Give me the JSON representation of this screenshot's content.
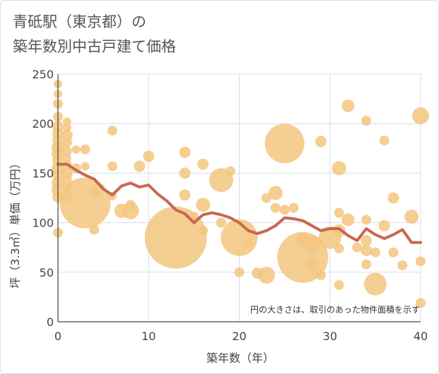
{
  "title_line1": "青砥駅（東京都）の",
  "title_line2": "築年数別中古戸建て価格",
  "colors": {
    "bubble": "#f3c57f",
    "line": "#c8674f",
    "grid": "#d7dde6",
    "axis": "#444444"
  },
  "chart_data": {
    "type": "scatter",
    "title": "青砥駅（東京都）の築年数別中古戸建て価格",
    "xlabel": "築年数（年）",
    "ylabel": "坪（3.3㎡）単価（万円）",
    "xlim": [
      0,
      40
    ],
    "ylim": [
      0,
      250
    ],
    "x_ticks": [
      "0",
      "10",
      "20",
      "30",
      "40"
    ],
    "y_ticks": [
      "0",
      "50",
      "100",
      "150",
      "200",
      "250"
    ],
    "grid": true,
    "annotation": "円の大きさは、取引のあった物件面積を示す",
    "bubbles": [
      {
        "x": 0,
        "y": 240,
        "r": 6
      },
      {
        "x": 0,
        "y": 230,
        "r": 6
      },
      {
        "x": 0,
        "y": 220,
        "r": 7
      },
      {
        "x": 0,
        "y": 207,
        "r": 7
      },
      {
        "x": 0,
        "y": 197,
        "r": 8
      },
      {
        "x": 0,
        "y": 190,
        "r": 8
      },
      {
        "x": 0,
        "y": 183,
        "r": 8
      },
      {
        "x": 0,
        "y": 176,
        "r": 9
      },
      {
        "x": 0,
        "y": 170,
        "r": 9
      },
      {
        "x": 0,
        "y": 163,
        "r": 8
      },
      {
        "x": 0,
        "y": 155,
        "r": 9
      },
      {
        "x": 0,
        "y": 148,
        "r": 8
      },
      {
        "x": 0,
        "y": 140,
        "r": 9
      },
      {
        "x": 0,
        "y": 133,
        "r": 9
      },
      {
        "x": 0,
        "y": 126,
        "r": 8
      },
      {
        "x": 0,
        "y": 90,
        "r": 7
      },
      {
        "x": 1,
        "y": 202,
        "r": 6
      },
      {
        "x": 1,
        "y": 196,
        "r": 6
      },
      {
        "x": 1,
        "y": 188,
        "r": 8
      },
      {
        "x": 1,
        "y": 181,
        "r": 7
      },
      {
        "x": 1,
        "y": 172,
        "r": 7
      },
      {
        "x": 1,
        "y": 165,
        "r": 6
      },
      {
        "x": 1,
        "y": 158,
        "r": 7
      },
      {
        "x": 1,
        "y": 150,
        "r": 8
      },
      {
        "x": 1,
        "y": 143,
        "r": 7
      },
      {
        "x": 1,
        "y": 136,
        "r": 7
      },
      {
        "x": 1,
        "y": 126,
        "r": 7
      },
      {
        "x": 2,
        "y": 174,
        "r": 6
      },
      {
        "x": 2,
        "y": 155,
        "r": 7
      },
      {
        "x": 3,
        "y": 120,
        "r": 36
      },
      {
        "x": 3,
        "y": 174,
        "r": 7
      },
      {
        "x": 3,
        "y": 157,
        "r": 6
      },
      {
        "x": 4,
        "y": 130,
        "r": 8
      },
      {
        "x": 4,
        "y": 93,
        "r": 7
      },
      {
        "x": 6,
        "y": 193,
        "r": 7
      },
      {
        "x": 6,
        "y": 157,
        "r": 7
      },
      {
        "x": 6,
        "y": 127,
        "r": 6
      },
      {
        "x": 7,
        "y": 112,
        "r": 10
      },
      {
        "x": 8,
        "y": 112,
        "r": 12
      },
      {
        "x": 8,
        "y": 118,
        "r": 7
      },
      {
        "x": 9,
        "y": 157,
        "r": 8
      },
      {
        "x": 10,
        "y": 167,
        "r": 8
      },
      {
        "x": 13,
        "y": 85,
        "r": 44
      },
      {
        "x": 14,
        "y": 171,
        "r": 8
      },
      {
        "x": 14,
        "y": 150,
        "r": 8
      },
      {
        "x": 14,
        "y": 128,
        "r": 8
      },
      {
        "x": 15,
        "y": 106,
        "r": 7
      },
      {
        "x": 16,
        "y": 159,
        "r": 8
      },
      {
        "x": 16,
        "y": 118,
        "r": 10
      },
      {
        "x": 16,
        "y": 92,
        "r": 7
      },
      {
        "x": 18,
        "y": 143,
        "r": 17
      },
      {
        "x": 19,
        "y": 152,
        "r": 7
      },
      {
        "x": 18,
        "y": 100,
        "r": 7
      },
      {
        "x": 20,
        "y": 85,
        "r": 26
      },
      {
        "x": 20,
        "y": 50,
        "r": 7
      },
      {
        "x": 21,
        "y": 80,
        "r": 7
      },
      {
        "x": 22,
        "y": 49,
        "r": 8
      },
      {
        "x": 23,
        "y": 47,
        "r": 12
      },
      {
        "x": 23,
        "y": 125,
        "r": 7
      },
      {
        "x": 24,
        "y": 130,
        "r": 10
      },
      {
        "x": 24,
        "y": 115,
        "r": 7
      },
      {
        "x": 25,
        "y": 180,
        "r": 28
      },
      {
        "x": 25,
        "y": 113,
        "r": 7
      },
      {
        "x": 26,
        "y": 115,
        "r": 7
      },
      {
        "x": 27,
        "y": 65,
        "r": 36
      },
      {
        "x": 27,
        "y": 82,
        "r": 10
      },
      {
        "x": 28,
        "y": 79,
        "r": 12
      },
      {
        "x": 28,
        "y": 58,
        "r": 10
      },
      {
        "x": 29,
        "y": 182,
        "r": 8
      },
      {
        "x": 29,
        "y": 47,
        "r": 7
      },
      {
        "x": 30,
        "y": 85,
        "r": 16
      },
      {
        "x": 31,
        "y": 155,
        "r": 10
      },
      {
        "x": 31,
        "y": 110,
        "r": 7
      },
      {
        "x": 31,
        "y": 92,
        "r": 9
      },
      {
        "x": 31,
        "y": 74,
        "r": 7
      },
      {
        "x": 31,
        "y": 37,
        "r": 7
      },
      {
        "x": 32,
        "y": 218,
        "r": 9
      },
      {
        "x": 32,
        "y": 103,
        "r": 9
      },
      {
        "x": 33,
        "y": 75,
        "r": 7
      },
      {
        "x": 34,
        "y": 203,
        "r": 7
      },
      {
        "x": 34,
        "y": 103,
        "r": 7
      },
      {
        "x": 34,
        "y": 82,
        "r": 8
      },
      {
        "x": 34,
        "y": 72,
        "r": 8
      },
      {
        "x": 34,
        "y": 58,
        "r": 7
      },
      {
        "x": 35,
        "y": 38,
        "r": 16
      },
      {
        "x": 35,
        "y": 70,
        "r": 7
      },
      {
        "x": 36,
        "y": 183,
        "r": 7
      },
      {
        "x": 36,
        "y": 97,
        "r": 8
      },
      {
        "x": 37,
        "y": 125,
        "r": 8
      },
      {
        "x": 37,
        "y": 70,
        "r": 7
      },
      {
        "x": 38,
        "y": 57,
        "r": 7
      },
      {
        "x": 39,
        "y": 106,
        "r": 10
      },
      {
        "x": 40,
        "y": 208,
        "r": 12
      },
      {
        "x": 40,
        "y": 61,
        "r": 7
      },
      {
        "x": 40,
        "y": 19,
        "r": 7
      }
    ],
    "series": [
      {
        "type": "line",
        "x": [
          0,
          1,
          2,
          3,
          4,
          5,
          6,
          7,
          8,
          9,
          10,
          11,
          12,
          13,
          14,
          15,
          16,
          17,
          18,
          19,
          20,
          21,
          22,
          23,
          24,
          25,
          26,
          27,
          28,
          29,
          30,
          31,
          32,
          33,
          34,
          35,
          36,
          37,
          38,
          39,
          40
        ],
        "values": [
          159,
          159,
          153,
          148,
          144,
          134,
          128,
          137,
          140,
          136,
          138,
          129,
          122,
          113,
          109,
          100,
          108,
          110,
          108,
          105,
          100,
          92,
          89,
          92,
          97,
          105,
          104,
          102,
          97,
          92,
          94,
          94,
          87,
          82,
          94,
          88,
          84,
          88,
          93,
          80,
          80
        ]
      }
    ]
  }
}
